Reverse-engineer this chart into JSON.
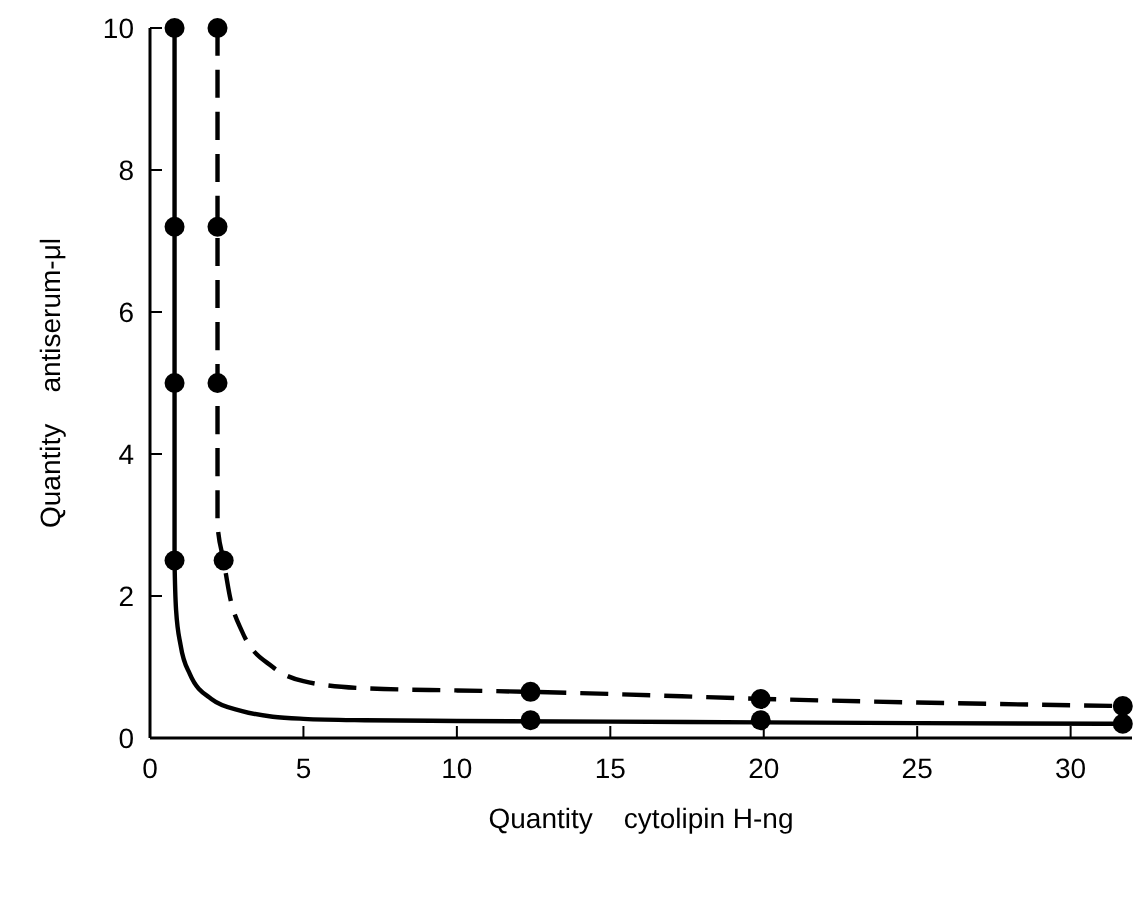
{
  "chart_data": {
    "type": "line",
    "xlabel": "Quantity    cytolipin H-ng",
    "ylabel": "Quantity    antiserum-μl",
    "xlim": [
      0,
      32
    ],
    "ylim": [
      0,
      10
    ],
    "xticks": [
      0,
      5,
      10,
      15,
      20,
      25,
      30
    ],
    "yticks": [
      0,
      2,
      4,
      6,
      8,
      10
    ],
    "grid": false,
    "series": [
      {
        "color": "#000000",
        "line_style": "solid",
        "marker": "none",
        "x": [
          0.8,
          0.8,
          0.85,
          1,
          1.3,
          2,
          3,
          4,
          5,
          7,
          10,
          15,
          20,
          25,
          31.7
        ],
        "values": [
          10,
          2.5,
          1.8,
          1.3,
          0.9,
          0.55,
          0.38,
          0.3,
          0.27,
          0.25,
          0.24,
          0.23,
          0.22,
          0.21,
          0.2
        ]
      },
      {
        "color": "#000000",
        "line_style": "dashed",
        "marker": "none",
        "x": [
          2.2,
          2.2,
          2.4,
          2.6,
          3,
          4,
          5,
          7,
          10,
          12.4,
          15,
          20,
          25,
          31.7
        ],
        "values": [
          10,
          3,
          2.5,
          2,
          1.5,
          1,
          0.8,
          0.7,
          0.67,
          0.65,
          0.62,
          0.55,
          0.5,
          0.45
        ]
      },
      {
        "type": "scatter",
        "color": "#000000",
        "marker": "circle",
        "x": [
          0.8,
          0.8,
          0.8,
          0.8,
          12.4,
          19.9,
          31.7
        ],
        "values": [
          10,
          7.2,
          5,
          2.5,
          0.25,
          0.25,
          0.2
        ]
      },
      {
        "type": "scatter",
        "color": "#000000",
        "marker": "circle",
        "x": [
          2.2,
          2.2,
          2.2,
          2.4,
          12.4,
          19.9,
          31.7
        ],
        "values": [
          10,
          7.2,
          5,
          2.5,
          0.65,
          0.55,
          0.45
        ]
      }
    ]
  }
}
